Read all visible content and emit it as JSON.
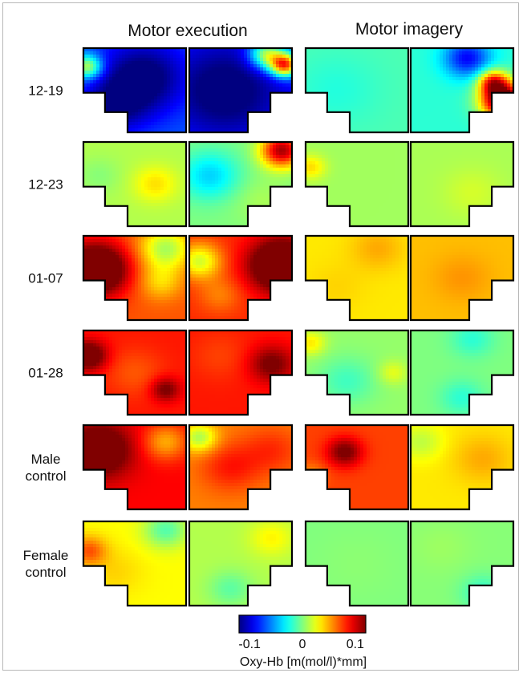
{
  "chart_data": {
    "type": "heatmap",
    "columns": [
      "Motor execution",
      "Motor imagery"
    ],
    "rows": [
      "12-19",
      "12-23",
      "01-07",
      "01-28",
      "Male\ncontrol",
      "Female\ncontrol"
    ],
    "colorbar": {
      "label": "Oxy-Hb [m(mol/l)*mm]",
      "range": [
        -0.12,
        0.12
      ],
      "ticks": [
        -0.1,
        0,
        0.1
      ],
      "tick_labels": [
        "-0.1",
        "0",
        "0.1"
      ],
      "colormap": "jet"
    },
    "maps": [
      {
        "row": "12-19",
        "column": "Motor execution",
        "panels": [
          {
            "hemisphere": "left",
            "base": -0.07,
            "blobs": [
              [
                0.58,
                0.35,
                0.3,
                -0.06
              ],
              [
                0.3,
                0.7,
                0.22,
                -0.04
              ],
              [
                0.04,
                0.22,
                0.1,
                0.09
              ]
            ]
          },
          {
            "hemisphere": "right",
            "base": -0.08,
            "blobs": [
              [
                0.35,
                0.5,
                0.4,
                -0.05
              ],
              [
                0.93,
                0.2,
                0.1,
                0.16
              ],
              [
                0.75,
                0.08,
                0.12,
                0.1
              ]
            ]
          }
        ]
      },
      {
        "row": "12-19",
        "column": "Motor imagery",
        "panels": [
          {
            "hemisphere": "left",
            "base": -0.012,
            "blobs": [
              [
                0.3,
                0.5,
                0.3,
                -0.01
              ]
            ]
          },
          {
            "hemisphere": "right",
            "base": -0.02,
            "blobs": [
              [
                0.55,
                0.12,
                0.16,
                -0.07
              ],
              [
                0.9,
                0.62,
                0.15,
                0.17
              ],
              [
                0.8,
                0.4,
                0.1,
                0.09
              ]
            ]
          }
        ]
      },
      {
        "row": "12-23",
        "column": "Motor execution",
        "panels": [
          {
            "hemisphere": "left",
            "base": 0.012,
            "blobs": [
              [
                0.7,
                0.5,
                0.15,
                0.025
              ],
              [
                0.15,
                0.4,
                0.15,
                -0.01
              ]
            ]
          },
          {
            "hemisphere": "right",
            "base": 0.0,
            "blobs": [
              [
                0.2,
                0.4,
                0.2,
                -0.04
              ],
              [
                0.9,
                0.1,
                0.14,
                0.11
              ],
              [
                0.7,
                0.7,
                0.2,
                0.01
              ]
            ]
          }
        ]
      },
      {
        "row": "12-23",
        "column": "Motor imagery",
        "panels": [
          {
            "hemisphere": "left",
            "base": 0.008,
            "blobs": [
              [
                0.05,
                0.3,
                0.1,
                0.03
              ]
            ]
          },
          {
            "hemisphere": "right",
            "base": 0.01,
            "blobs": [
              [
                0.6,
                0.6,
                0.2,
                0.01
              ]
            ]
          }
        ]
      },
      {
        "row": "01-07",
        "column": "Motor execution",
        "panels": [
          {
            "hemisphere": "left",
            "base": 0.07,
            "blobs": [
              [
                0.12,
                0.4,
                0.22,
                0.1
              ],
              [
                0.8,
                0.15,
                0.18,
                -0.06
              ],
              [
                0.75,
                0.55,
                0.15,
                -0.03
              ]
            ]
          },
          {
            "hemisphere": "right",
            "base": 0.08,
            "blobs": [
              [
                0.9,
                0.35,
                0.22,
                0.09
              ],
              [
                0.1,
                0.3,
                0.15,
                -0.06
              ],
              [
                0.3,
                0.7,
                0.15,
                -0.02
              ]
            ]
          }
        ]
      },
      {
        "row": "01-07",
        "column": "Motor imagery",
        "panels": [
          {
            "hemisphere": "left",
            "base": 0.035,
            "blobs": [
              [
                0.7,
                0.15,
                0.18,
                0.015
              ],
              [
                0.3,
                0.6,
                0.2,
                0.005
              ]
            ]
          },
          {
            "hemisphere": "right",
            "base": 0.045,
            "blobs": [
              [
                0.5,
                0.5,
                0.2,
                0.01
              ]
            ]
          }
        ]
      },
      {
        "row": "01-28",
        "column": "Motor execution",
        "panels": [
          {
            "hemisphere": "left",
            "base": 0.085,
            "blobs": [
              [
                0.05,
                0.3,
                0.12,
                0.06
              ],
              [
                0.8,
                0.7,
                0.1,
                0.04
              ],
              [
                0.5,
                0.5,
                0.2,
                -0.015
              ]
            ]
          },
          {
            "hemisphere": "right",
            "base": 0.085,
            "blobs": [
              [
                0.8,
                0.4,
                0.15,
                0.04
              ],
              [
                0.3,
                0.3,
                0.2,
                -0.01
              ]
            ]
          }
        ]
      },
      {
        "row": "01-28",
        "column": "Motor imagery",
        "panels": [
          {
            "hemisphere": "left",
            "base": 0.005,
            "blobs": [
              [
                0.05,
                0.15,
                0.1,
                0.03
              ],
              [
                0.85,
                0.5,
                0.1,
                0.02
              ],
              [
                0.4,
                0.6,
                0.2,
                -0.02
              ]
            ]
          },
          {
            "hemisphere": "right",
            "base": 0.0,
            "blobs": [
              [
                0.6,
                0.1,
                0.15,
                -0.02
              ],
              [
                0.5,
                0.8,
                0.15,
                -0.02
              ]
            ]
          }
        ]
      },
      {
        "row": "Male\ncontrol",
        "column": "Motor execution",
        "panels": [
          {
            "hemisphere": "left",
            "base": 0.09,
            "blobs": [
              [
                0.15,
                0.3,
                0.22,
                0.06
              ],
              [
                0.8,
                0.2,
                0.15,
                -0.04
              ]
            ]
          },
          {
            "hemisphere": "right",
            "base": 0.06,
            "blobs": [
              [
                0.1,
                0.15,
                0.12,
                -0.05
              ],
              [
                0.4,
                0.5,
                0.2,
                0.025
              ],
              [
                0.8,
                0.3,
                0.2,
                0.02
              ]
            ]
          }
        ]
      },
      {
        "row": "Male\ncontrol",
        "column": "Motor imagery",
        "panels": [
          {
            "hemisphere": "left",
            "base": 0.075,
            "blobs": [
              [
                0.38,
                0.32,
                0.12,
                0.05
              ],
              [
                0.05,
                0.6,
                0.1,
                -0.02
              ]
            ]
          },
          {
            "hemisphere": "right",
            "base": 0.035,
            "blobs": [
              [
                0.1,
                0.2,
                0.15,
                -0.02
              ],
              [
                0.7,
                0.4,
                0.2,
                0.015
              ]
            ]
          }
        ]
      },
      {
        "row": "Female\ncontrol",
        "column": "Motor execution",
        "panels": [
          {
            "hemisphere": "left",
            "base": 0.03,
            "blobs": [
              [
                0.05,
                0.35,
                0.12,
                0.04
              ],
              [
                0.8,
                0.1,
                0.15,
                -0.04
              ],
              [
                0.3,
                0.6,
                0.2,
                0.01
              ]
            ]
          },
          {
            "hemisphere": "right",
            "base": 0.012,
            "blobs": [
              [
                0.4,
                0.8,
                0.15,
                -0.02
              ],
              [
                0.8,
                0.2,
                0.15,
                0.02
              ]
            ]
          }
        ]
      },
      {
        "row": "Female\ncontrol",
        "column": "Motor imagery",
        "panels": [
          {
            "hemisphere": "left",
            "base": 0.0,
            "blobs": [
              [
                0.5,
                0.5,
                0.3,
                0.003
              ]
            ]
          },
          {
            "hemisphere": "right",
            "base": 0.002,
            "blobs": [
              [
                0.7,
                0.85,
                0.15,
                -0.02
              ],
              [
                0.3,
                0.3,
                0.2,
                0.005
              ]
            ]
          }
        ]
      }
    ]
  }
}
